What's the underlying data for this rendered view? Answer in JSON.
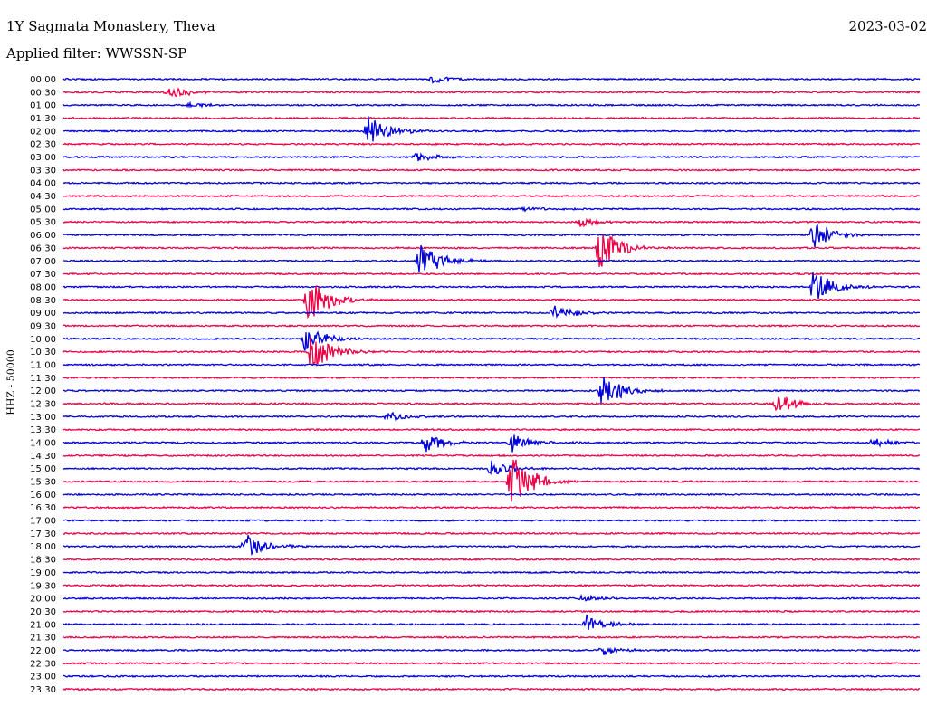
{
  "header": {
    "station": "1Y Sagmata Monastery, Theva",
    "filter": "Applied filter: WWSSN-SP",
    "date": "2023-03-02"
  },
  "chart_data": {
    "type": "line",
    "title": "1Y Sagmata Monastery, Theva",
    "subtitle": "Applied filter: WWSSN-SP",
    "ylabel": "HHZ - 50000",
    "xlabel": "",
    "colors": {
      "even_trace": "#0000dd",
      "odd_trace": "#ee0044"
    },
    "tick_labels": [
      "00:00",
      "00:30",
      "01:00",
      "01:30",
      "02:00",
      "02:30",
      "03:00",
      "03:30",
      "04:00",
      "04:30",
      "05:00",
      "05:30",
      "06:00",
      "06:30",
      "07:00",
      "07:30",
      "08:00",
      "08:30",
      "09:00",
      "09:30",
      "10:00",
      "10:30",
      "11:00",
      "11:30",
      "12:00",
      "12:30",
      "13:00",
      "13:30",
      "14:00",
      "14:30",
      "15:00",
      "15:30",
      "16:00",
      "16:30",
      "17:00",
      "17:30",
      "18:00",
      "18:30",
      "19:00",
      "19:30",
      "20:00",
      "20:30",
      "21:00",
      "21:30",
      "22:00",
      "22:30",
      "23:00",
      "23:30"
    ],
    "trace_minutes": 30,
    "events": [
      {
        "row": 0,
        "minute": 12.9,
        "amplitude": 0.25
      },
      {
        "row": 1,
        "minute": 3.7,
        "amplitude": 0.5
      },
      {
        "row": 2,
        "minute": 4.4,
        "amplitude": 0.15
      },
      {
        "row": 4,
        "minute": 10.7,
        "amplitude": 1.0
      },
      {
        "row": 6,
        "minute": 12.4,
        "amplitude": 0.3
      },
      {
        "row": 10,
        "minute": 16.2,
        "amplitude": 0.15
      },
      {
        "row": 11,
        "minute": 18.1,
        "amplitude": 0.3
      },
      {
        "row": 12,
        "minute": 26.3,
        "amplitude": 0.9
      },
      {
        "row": 13,
        "minute": 18.8,
        "amplitude": 1.4
      },
      {
        "row": 14,
        "minute": 12.5,
        "amplitude": 1.2
      },
      {
        "row": 16,
        "minute": 26.3,
        "amplitude": 1.1
      },
      {
        "row": 17,
        "minute": 8.6,
        "amplitude": 1.6
      },
      {
        "row": 18,
        "minute": 17.2,
        "amplitude": 0.5
      },
      {
        "row": 20,
        "minute": 8.5,
        "amplitude": 0.9
      },
      {
        "row": 21,
        "minute": 8.7,
        "amplitude": 1.2
      },
      {
        "row": 24,
        "minute": 18.9,
        "amplitude": 1.1
      },
      {
        "row": 25,
        "minute": 25.0,
        "amplitude": 0.6
      },
      {
        "row": 26,
        "minute": 11.4,
        "amplitude": 0.3
      },
      {
        "row": 28,
        "minute": 12.7,
        "amplitude": 0.6
      },
      {
        "row": 28,
        "minute": 15.7,
        "amplitude": 0.6
      },
      {
        "row": 28,
        "minute": 28.3,
        "amplitude": 0.3
      },
      {
        "row": 30,
        "minute": 15.0,
        "amplitude": 0.5
      },
      {
        "row": 31,
        "minute": 15.7,
        "amplitude": 2.0
      },
      {
        "row": 36,
        "minute": 6.4,
        "amplitude": 0.8
      },
      {
        "row": 40,
        "minute": 18.2,
        "amplitude": 0.2
      },
      {
        "row": 42,
        "minute": 18.3,
        "amplitude": 0.6
      },
      {
        "row": 44,
        "minute": 18.9,
        "amplitude": 0.3
      }
    ]
  }
}
